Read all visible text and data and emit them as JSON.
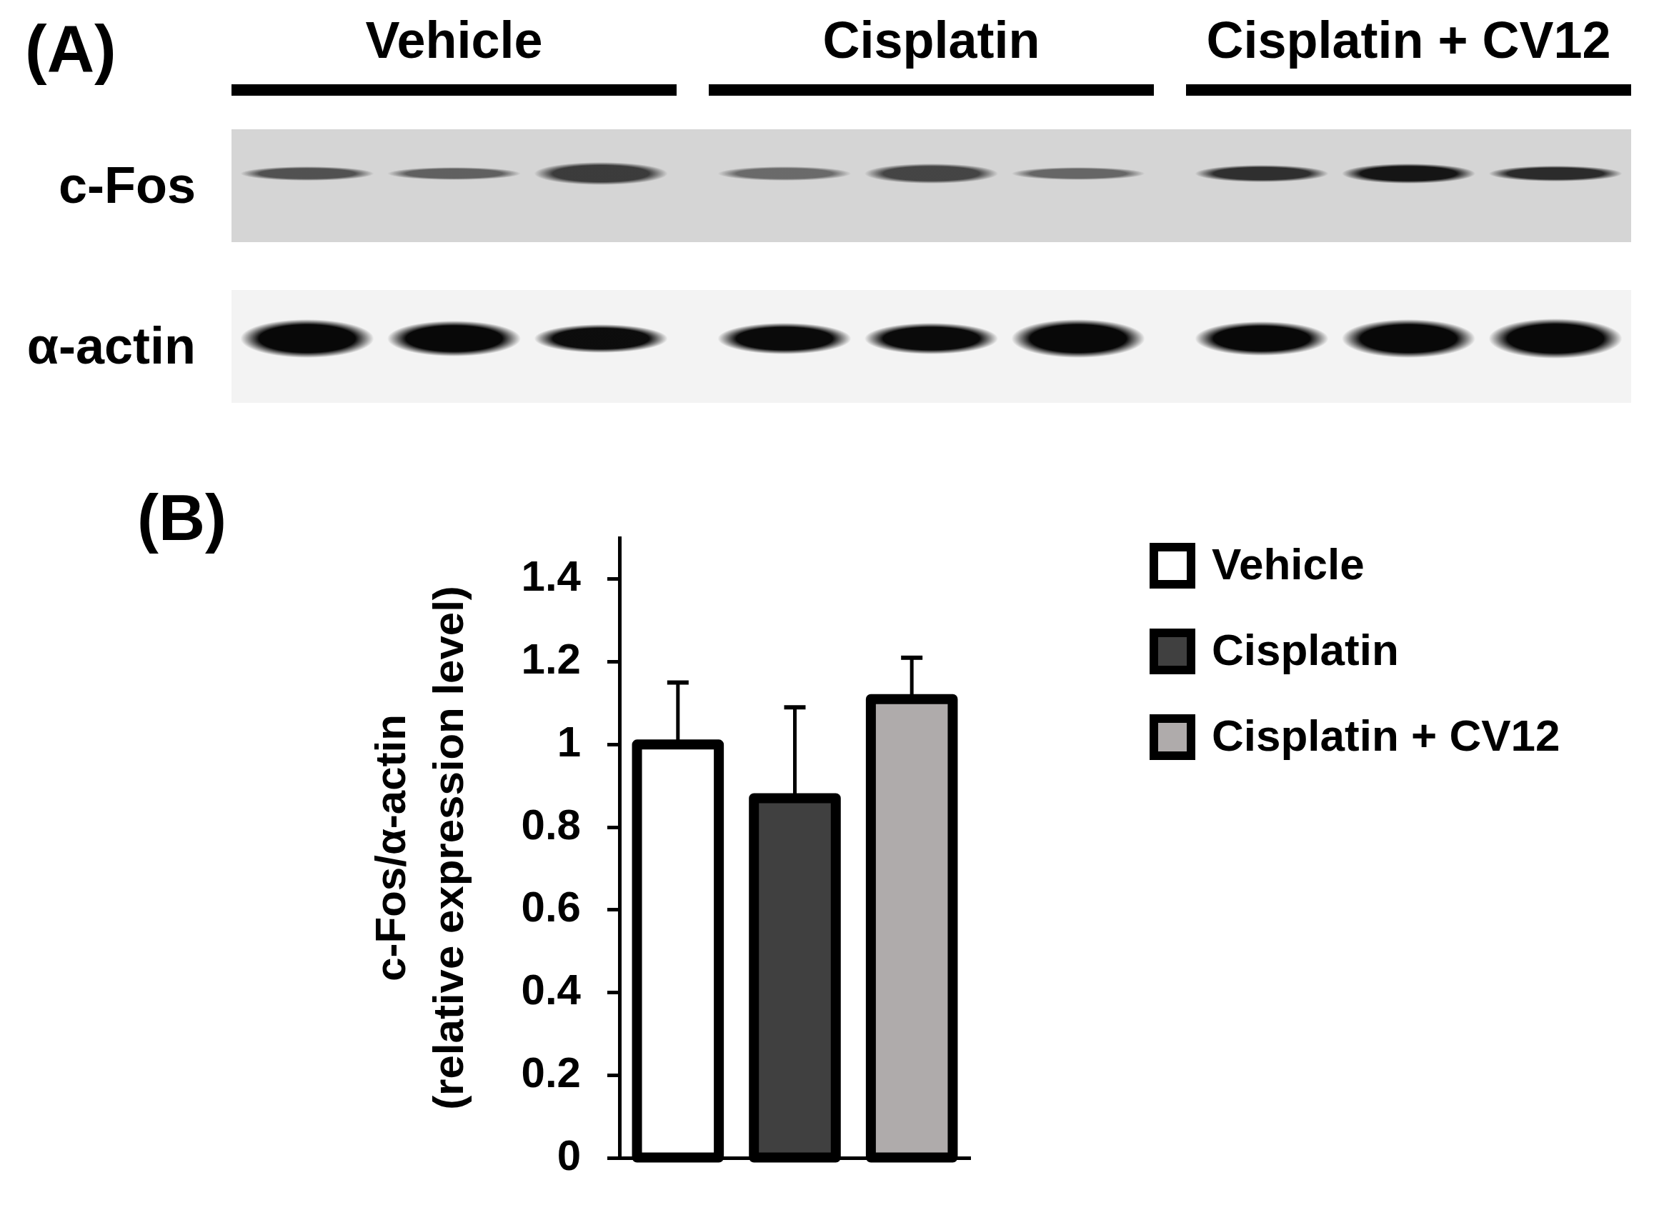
{
  "chart_data": [
    {
      "type": "other",
      "title": "(A)",
      "categories": [
        "Vehicle",
        "Cisplatin",
        "Cisplatin + CV12"
      ],
      "y_categories": [
        "c-Fos",
        "α-actin"
      ]
    },
    {
      "type": "bar",
      "title": "(B)",
      "ylabel": "c-Fos/α-actin\n(relative expression level)",
      "categories": [
        null,
        null,
        null
      ],
      "series": [
        {
          "name": "Vehicle",
          "color": "#ffffff",
          "values": [
            1.0,
            null,
            null
          ],
          "errors": [
            [
              1.0,
              1.15
            ],
            null,
            null
          ]
        },
        {
          "name": "Cisplatin",
          "color": "#404040",
          "values": [
            null,
            0.87,
            null
          ],
          "errors": [
            null,
            [
              0.87,
              1.09
            ],
            null
          ]
        },
        {
          "name": "Cisplatin + CV12",
          "color": "#afabab",
          "values": [
            null,
            null,
            1.11
          ],
          "errors": [
            null,
            null,
            [
              1.11,
              1.21
            ]
          ]
        }
      ],
      "ylim": [
        0,
        1.5
      ],
      "yticks": [
        0,
        0.2,
        0.4,
        0.6,
        0.8,
        1,
        1.2,
        1.4
      ],
      "legend": "top right"
    }
  ]
}
